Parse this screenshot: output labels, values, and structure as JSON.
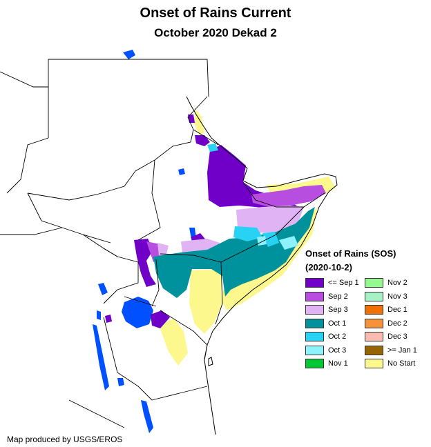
{
  "title": "Onset of Rains Current",
  "subtitle": "October 2020 Dekad 2",
  "legend": {
    "title": "Onset of Rains (SOS)",
    "date": "(2020-10-2)",
    "items": [
      {
        "label": "<= Sep 1",
        "color": "#7000c8"
      },
      {
        "label": "Sep 2",
        "color": "#b84ee0"
      },
      {
        "label": "Sep 3",
        "color": "#e0b4f4"
      },
      {
        "label": "Oct 1",
        "color": "#00929c"
      },
      {
        "label": "Oct 2",
        "color": "#28d2f2"
      },
      {
        "label": "Oct 3",
        "color": "#8ef2fc"
      },
      {
        "label": "Nov 1",
        "color": "#00c832"
      },
      {
        "label": "Nov 2",
        "color": "#96f890"
      },
      {
        "label": "Nov 3",
        "color": "#a6f2c4"
      },
      {
        "label": "Dec 1",
        "color": "#f27000"
      },
      {
        "label": "Dec 2",
        "color": "#f8923a"
      },
      {
        "label": "Dec 3",
        "color": "#fcbcb2"
      },
      {
        "label": ">= Jan 1",
        "color": "#966400"
      },
      {
        "label": "No Start",
        "color": "#fcf88e"
      }
    ]
  },
  "credit": "Map produced by USGS/EROS",
  "water_color": "#0050ff"
}
